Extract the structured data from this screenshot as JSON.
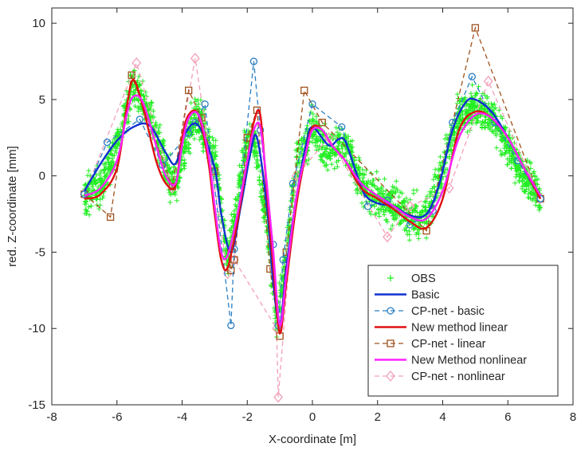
{
  "chart_data": {
    "type": "line",
    "title": "",
    "xlabel": "X-coordinate [m]",
    "ylabel": "red. Z-coordinate [mm]",
    "xlim": [
      -8,
      8
    ],
    "ylim": [
      -15,
      11
    ],
    "xticks": [
      -8,
      -6,
      -4,
      -2,
      0,
      2,
      4,
      6,
      8
    ],
    "yticks": [
      -15,
      -10,
      -5,
      0,
      5,
      10
    ],
    "ytick_labels": [
      "-15",
      "-10",
      "-5",
      "0",
      "5",
      "10"
    ],
    "xtick_labels": [
      "-8",
      "-6",
      "-4",
      "-2",
      "0",
      "2",
      "4",
      "6",
      "8"
    ],
    "grid": false,
    "legend_position": "bottom-right",
    "colors": {
      "obs": "#22ee22",
      "basic": "#1030d0",
      "cp_basic": "#2a7fc4",
      "linear": "#e01010",
      "cp_linear": "#a0521e",
      "nonlinear": "#ff20ff",
      "cp_nonlinear": "#f2a0b8"
    },
    "obs": {
      "name": "OBS",
      "description_of_shape": "dense cloud of ~3000 noisy observations following the curves, x from -7 to 7, spread about ±1.5 mm",
      "x": [
        -7.0,
        -6.5,
        -6.0,
        -5.5,
        -5.0,
        -4.5,
        -4.2,
        -3.8,
        -3.5,
        -3.0,
        -2.6,
        -2.3,
        -2.0,
        -1.8,
        -1.4,
        -1.1,
        -0.8,
        -0.5,
        0.0,
        0.5,
        1.0,
        1.5,
        2.0,
        2.5,
        3.0,
        3.5,
        4.0,
        4.5,
        5.0,
        5.5,
        6.0,
        6.5,
        7.0
      ],
      "y": [
        -1.2,
        -0.8,
        2.0,
        6.0,
        4.0,
        0.5,
        -0.9,
        3.0,
        4.0,
        1.0,
        -5.5,
        -1.5,
        2.5,
        2.5,
        -3.0,
        -10.0,
        -5.0,
        0.5,
        3.0,
        1.5,
        2.2,
        -0.5,
        -1.5,
        -2.0,
        -2.8,
        -2.5,
        0.5,
        4.0,
        4.5,
        4.0,
        2.0,
        0.0,
        -1.5
      ]
    },
    "series": [
      {
        "name": "Basic",
        "x": [
          -7.0,
          -6.5,
          -6.0,
          -5.5,
          -5.0,
          -4.5,
          -4.2,
          -3.9,
          -3.5,
          -3.0,
          -2.8,
          -2.5,
          -2.2,
          -1.9,
          -1.7,
          -1.4,
          -1.2,
          -1.0,
          -0.8,
          -0.5,
          -0.2,
          0.0,
          0.5,
          0.8,
          1.0,
          1.3,
          1.6,
          2.0,
          2.5,
          3.0,
          3.5,
          3.9,
          4.3,
          4.7,
          5.0,
          5.5,
          6.0,
          6.5,
          7.0
        ],
        "y": [
          -1.0,
          0.8,
          2.3,
          3.2,
          3.3,
          1.5,
          0.8,
          2.8,
          3.3,
          0.5,
          -2.5,
          -5.0,
          -2.0,
          1.5,
          2.5,
          -2.0,
          -7.0,
          -9.8,
          -6.0,
          -1.5,
          2.0,
          3.2,
          2.0,
          2.4,
          2.3,
          0.5,
          -1.2,
          -1.8,
          -2.0,
          -2.6,
          -2.5,
          -0.5,
          3.0,
          4.8,
          5.0,
          4.2,
          2.5,
          0.5,
          -1.5
        ]
      },
      {
        "name": "CP-net - basic",
        "dashed": true,
        "marker": "circle",
        "x": [
          -7.0,
          -6.3,
          -5.3,
          -4.6,
          -3.8,
          -3.6,
          -3.3,
          -2.5,
          -2.4,
          -1.8,
          -1.6,
          -1.2,
          -1.05,
          -0.9,
          -0.6,
          0.0,
          0.9,
          1.7,
          2.3,
          3.0,
          3.7,
          4.3,
          4.9,
          5.6,
          6.3,
          7.0
        ],
        "y": [
          -1.2,
          2.2,
          3.7,
          0.7,
          2.8,
          3.5,
          4.7,
          -9.8,
          -4.8,
          7.5,
          3.0,
          -4.5,
          -9.8,
          -5.5,
          -0.5,
          4.7,
          3.2,
          -2.0,
          -1.6,
          -3.2,
          -2.3,
          3.5,
          6.5,
          3.5,
          1.0,
          -1.5
        ]
      },
      {
        "name": "New method linear",
        "x": [
          -7.0,
          -6.5,
          -6.0,
          -5.7,
          -5.5,
          -5.2,
          -4.8,
          -4.5,
          -4.2,
          -4.0,
          -3.8,
          -3.5,
          -3.2,
          -3.0,
          -2.8,
          -2.6,
          -2.3,
          -2.0,
          -1.8,
          -1.6,
          -1.4,
          -1.2,
          -1.0,
          -0.8,
          -0.5,
          -0.2,
          0.0,
          0.3,
          0.6,
          1.0,
          1.5,
          2.0,
          2.5,
          3.0,
          3.5,
          4.0,
          4.5,
          5.0,
          5.5,
          6.0,
          6.5,
          7.0
        ],
        "y": [
          -1.5,
          -1.2,
          0.5,
          4.5,
          6.3,
          4.5,
          1.0,
          -0.5,
          -0.6,
          2.5,
          4.0,
          4.0,
          1.0,
          -2.5,
          -5.5,
          -6.0,
          -3.0,
          1.0,
          3.5,
          4.0,
          -1.0,
          -6.0,
          -10.3,
          -7.0,
          -2.0,
          1.5,
          3.2,
          3.0,
          2.0,
          1.0,
          -0.8,
          -1.5,
          -2.2,
          -3.0,
          -3.4,
          -1.5,
          3.0,
          4.2,
          3.8,
          2.5,
          0.5,
          -1.5
        ]
      },
      {
        "name": "CP-net - linear",
        "dashed": true,
        "marker": "square",
        "x": [
          -7.0,
          -6.2,
          -5.55,
          -4.3,
          -3.8,
          -3.4,
          -3.0,
          -2.5,
          -2.4,
          -2.0,
          -1.7,
          -1.3,
          -1.0,
          -0.8,
          -0.25,
          0.3,
          3.5,
          5.0,
          7.0
        ],
        "y": [
          -1.2,
          -2.7,
          6.6,
          -0.7,
          5.6,
          3.8,
          0.3,
          -6.2,
          -5.5,
          2.5,
          4.3,
          -6.1,
          -10.5,
          -5.0,
          5.6,
          3.5,
          -3.6,
          9.7,
          -1.5
        ]
      },
      {
        "name": "New Method nonlinear",
        "x": [
          -7.0,
          -6.5,
          -6.0,
          -5.7,
          -5.5,
          -5.2,
          -4.8,
          -4.5,
          -4.2,
          -4.0,
          -3.8,
          -3.5,
          -3.2,
          -3.0,
          -2.8,
          -2.6,
          -2.3,
          -2.0,
          -1.8,
          -1.6,
          -1.4,
          -1.2,
          -1.0,
          -0.8,
          -0.5,
          -0.2,
          0.0,
          0.3,
          0.6,
          1.0,
          1.5,
          2.0,
          2.5,
          3.0,
          3.5,
          4.0,
          4.5,
          5.0,
          5.5,
          6.0,
          6.5,
          7.0
        ],
        "y": [
          -1.3,
          -0.8,
          1.0,
          4.0,
          5.2,
          4.8,
          2.0,
          0.0,
          -0.5,
          2.0,
          3.8,
          4.0,
          1.5,
          -2.0,
          -5.0,
          -5.2,
          -2.5,
          1.0,
          3.0,
          3.2,
          -0.5,
          -5.0,
          -9.8,
          -6.5,
          -1.5,
          1.5,
          3.0,
          3.0,
          2.0,
          1.0,
          -0.5,
          -1.3,
          -2.0,
          -2.7,
          -2.8,
          -1.0,
          2.5,
          4.0,
          3.8,
          2.5,
          0.5,
          -1.3
        ]
      },
      {
        "name": "CP-net - nonlinear",
        "dashed": true,
        "marker": "diamond",
        "x": [
          -7.0,
          -5.4,
          -4.3,
          -3.6,
          -2.6,
          -2.4,
          -1.1,
          -1.05,
          -0.5,
          0.5,
          2.3,
          3.0,
          4.2,
          5.4,
          7.0
        ],
        "y": [
          -1.2,
          7.4,
          -0.8,
          7.7,
          -6.4,
          -5.5,
          -10.0,
          -14.5,
          0.0,
          2.5,
          -4.0,
          -2.0,
          -0.8,
          6.2,
          -1.5
        ]
      }
    ]
  }
}
